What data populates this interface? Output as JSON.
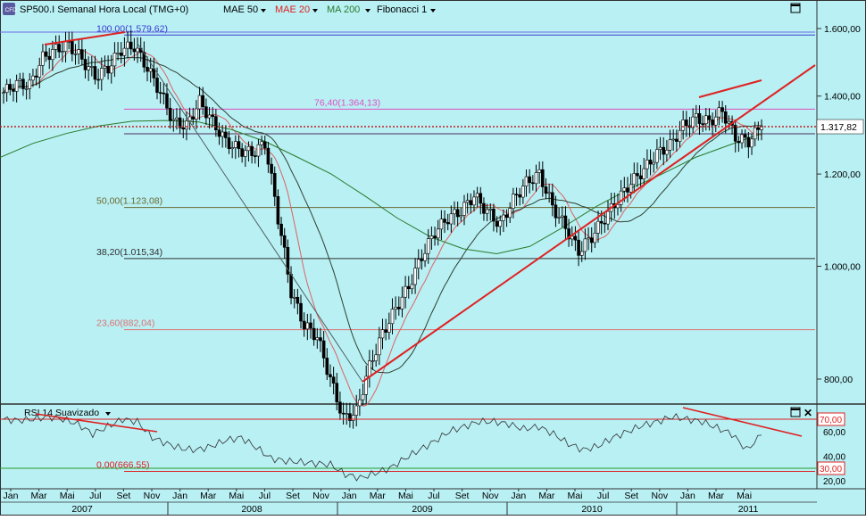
{
  "toolbar": {
    "app_icon": "cfd-icon",
    "items": [
      {
        "label": "SP500.I Semanal Hora Local (TMG+0)",
        "color": "#000000"
      },
      {
        "label": "MAE 50",
        "color": "#000000"
      },
      {
        "label": "MAE 20",
        "color": "#e02020"
      },
      {
        "label": "MA 200",
        "color": "#2a7a2a"
      },
      {
        "label": "Fibonacci 1",
        "color": "#000000"
      }
    ]
  },
  "rsi_panel": {
    "title": "RSI 14 Suavizado",
    "levels": [
      {
        "value": "70,00",
        "color": "#e02020"
      },
      {
        "value": "30,00",
        "color": "#e02020"
      }
    ],
    "axis_labels": [
      "60,00",
      "40,00",
      "20,00"
    ]
  },
  "chart_data": {
    "type": "candlestick",
    "price_axis": {
      "labels": [
        "1.600,00",
        "1.400,00",
        "1.200,00",
        "1.000,00",
        "800,00"
      ],
      "values": [
        1600,
        1400,
        1200,
        1000,
        800
      ],
      "scale": "log",
      "range": [
        660,
        1700
      ]
    },
    "current_price": {
      "label": "1.317,82",
      "value": 1317.82
    },
    "fibonacci": [
      {
        "label": "100,00(1.579,62)",
        "value": 1579.62,
        "color": "#3a3ad0"
      },
      {
        "label": "76,40(1.364,13)",
        "value": 1364.13,
        "color": "#e050c0"
      },
      {
        "label": "50,00(1.123,08)",
        "value": 1123.08,
        "color": "#6a6a30"
      },
      {
        "label": "38,20(1.015,34)",
        "value": 1015.34,
        "color": "#303030"
      },
      {
        "label": "23,60(882,04)",
        "value": 882.04,
        "color": "#e07070"
      },
      {
        "label": "0,00(666,55)",
        "value": 666.55,
        "color": "#e02020"
      }
    ],
    "x_axis": {
      "months": [
        "Jan",
        "Mar",
        "Mai",
        "Jul",
        "Set",
        "Nov",
        "Jan",
        "Mar",
        "Mai",
        "Jul",
        "Set",
        "Nov",
        "Jan",
        "Mar",
        "Mai",
        "Jul",
        "Set",
        "Nov",
        "Jan",
        "Mar",
        "Mai",
        "Jul",
        "Set",
        "Nov",
        "Jan",
        "Mar",
        "Mai"
      ],
      "years": [
        "2007",
        "2008",
        "2009",
        "2010",
        "2011"
      ]
    },
    "price_series": [
      1410,
      1435,
      1430,
      1510,
      1535,
      1550,
      1505,
      1455,
      1480,
      1535,
      1545,
      1480,
      1410,
      1330,
      1320,
      1385,
      1330,
      1280,
      1260,
      1250,
      1275,
      1100,
      950,
      890,
      870,
      800,
      740,
      750,
      820,
      875,
      920,
      960,
      1020,
      1070,
      1100,
      1115,
      1150,
      1115,
      1085,
      1140,
      1180,
      1200,
      1125,
      1080,
      1030,
      1060,
      1100,
      1140,
      1180,
      1210,
      1250,
      1270,
      1320,
      1340,
      1330,
      1360,
      1290,
      1280,
      1320
    ],
    "ma200_series": [
      1240,
      1275,
      1300,
      1320,
      1332,
      1334,
      1330,
      1310,
      1280,
      1240,
      1200,
      1150,
      1100,
      1060,
      1035,
      1025,
      1040,
      1080,
      1125,
      1165,
      1200,
      1240,
      1270,
      1300
    ],
    "rsi_series": [
      70,
      69,
      70,
      72,
      70,
      66,
      58,
      64,
      70,
      68,
      55,
      50,
      46,
      45,
      48,
      53,
      55,
      47,
      38,
      36,
      35,
      34,
      33,
      25,
      22,
      26,
      30,
      38,
      45,
      52,
      60,
      64,
      68,
      68,
      66,
      62,
      64,
      58,
      50,
      45,
      48,
      55,
      60,
      65,
      68,
      72,
      70,
      68,
      63,
      58,
      45,
      57
    ]
  }
}
